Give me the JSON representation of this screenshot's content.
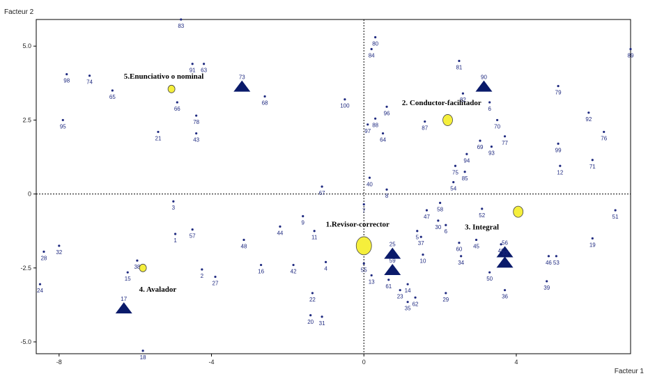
{
  "chart_data": {
    "type": "scatter",
    "xlabel": "Facteur 1",
    "ylabel": "Facteur 2",
    "xlim": [
      -8.6,
      7.0
    ],
    "ylim": [
      -5.4,
      5.9
    ],
    "xticks": [
      -8,
      -4,
      0,
      4
    ],
    "yticks": [
      5.0,
      2.5,
      0,
      -2.5,
      -5.0
    ],
    "xtick_labels": [
      "-8",
      "-4",
      "0",
      "4"
    ],
    "ytick_labels": [
      "5.0",
      "2.5",
      "0",
      "-2.5",
      "-5.0"
    ],
    "reference_lines": {
      "x0": true,
      "y0": true,
      "style": "dotted"
    },
    "colors": {
      "points": "#1f2a80",
      "circles": "#f5ef3c",
      "triangles": "#0a1a6a"
    },
    "points": [
      {
        "label": "83",
        "x": -4.8,
        "y": 5.9
      },
      {
        "label": "80",
        "x": 0.3,
        "y": 5.3
      },
      {
        "label": "89",
        "x": 7.0,
        "y": 4.9
      },
      {
        "label": "84",
        "x": 0.2,
        "y": 4.9
      },
      {
        "label": "91",
        "x": -4.5,
        "y": 4.4
      },
      {
        "label": "63",
        "x": -4.2,
        "y": 4.4
      },
      {
        "label": "81",
        "x": 2.5,
        "y": 4.5
      },
      {
        "label": "98",
        "x": -7.8,
        "y": 4.05
      },
      {
        "label": "74",
        "x": -7.2,
        "y": 4.0
      },
      {
        "label": "65",
        "x": -6.6,
        "y": 3.5
      },
      {
        "label": "68",
        "x": -2.6,
        "y": 3.3
      },
      {
        "label": "79",
        "x": 5.1,
        "y": 3.65
      },
      {
        "label": "100",
        "x": -0.5,
        "y": 3.2
      },
      {
        "label": "82",
        "x": 2.6,
        "y": 3.4
      },
      {
        "label": "66",
        "x": -4.9,
        "y": 3.1
      },
      {
        "label": "96",
        "x": 0.6,
        "y": 2.95
      },
      {
        "label": "6",
        "x": 3.3,
        "y": 3.1
      },
      {
        "label": "92",
        "x": 5.9,
        "y": 2.75
      },
      {
        "label": "78",
        "x": -4.4,
        "y": 2.65
      },
      {
        "label": "88",
        "x": 0.3,
        "y": 2.55
      },
      {
        "label": "95",
        "x": -7.9,
        "y": 2.5
      },
      {
        "label": "87",
        "x": 1.6,
        "y": 2.45
      },
      {
        "label": "70",
        "x": 3.5,
        "y": 2.5
      },
      {
        "label": "97",
        "x": 0.1,
        "y": 2.35
      },
      {
        "label": "21",
        "x": -5.4,
        "y": 2.1
      },
      {
        "label": "43",
        "x": -4.4,
        "y": 2.05
      },
      {
        "label": "64",
        "x": 0.5,
        "y": 2.05
      },
      {
        "label": "76",
        "x": 6.3,
        "y": 2.1
      },
      {
        "label": "77",
        "x": 3.7,
        "y": 1.95
      },
      {
        "label": "69",
        "x": 3.05,
        "y": 1.8
      },
      {
        "label": "99",
        "x": 5.1,
        "y": 1.7
      },
      {
        "label": "93",
        "x": 3.35,
        "y": 1.6
      },
      {
        "label": "94",
        "x": 2.7,
        "y": 1.35
      },
      {
        "label": "71",
        "x": 6.0,
        "y": 1.15
      },
      {
        "label": "12",
        "x": 5.15,
        "y": 0.95
      },
      {
        "label": "75",
        "x": 2.4,
        "y": 0.95
      },
      {
        "label": "85",
        "x": 2.65,
        "y": 0.75
      },
      {
        "label": "40",
        "x": 0.15,
        "y": 0.55
      },
      {
        "label": "54",
        "x": 2.35,
        "y": 0.4
      },
      {
        "label": "67",
        "x": -1.1,
        "y": 0.25
      },
      {
        "label": "8",
        "x": 0.6,
        "y": 0.15
      },
      {
        "label": "7",
        "x": 0.0,
        "y": -0.35
      },
      {
        "label": "3",
        "x": -5.0,
        "y": -0.25
      },
      {
        "label": "58",
        "x": 2.0,
        "y": -0.3
      },
      {
        "label": "52",
        "x": 3.1,
        "y": -0.5
      },
      {
        "label": "47",
        "x": 1.65,
        "y": -0.55
      },
      {
        "label": "51",
        "x": 6.6,
        "y": -0.55
      },
      {
        "label": "9",
        "x": -1.6,
        "y": -0.75
      },
      {
        "label": "30",
        "x": 1.95,
        "y": -0.9
      },
      {
        "label": "6",
        "x": 2.15,
        "y": -1.05
      },
      {
        "label": "44",
        "x": -2.2,
        "y": -1.1
      },
      {
        "label": "11",
        "x": -1.3,
        "y": -1.25
      },
      {
        "label": "57",
        "x": -4.5,
        "y": -1.2
      },
      {
        "label": "5",
        "x": 1.4,
        "y": -1.25
      },
      {
        "label": "1",
        "x": -4.95,
        "y": -1.35
      },
      {
        "label": "37",
        "x": 1.5,
        "y": -1.45
      },
      {
        "label": "48",
        "x": -3.15,
        "y": -1.55
      },
      {
        "label": "19",
        "x": 6.0,
        "y": -1.5
      },
      {
        "label": "45",
        "x": 2.95,
        "y": -1.55
      },
      {
        "label": "60",
        "x": 2.5,
        "y": -1.65
      },
      {
        "label": "49",
        "x": 3.6,
        "y": -1.7
      },
      {
        "label": "32",
        "x": -8.0,
        "y": -1.75
      },
      {
        "label": "28",
        "x": -8.4,
        "y": -1.95
      },
      {
        "label": "10",
        "x": 1.55,
        "y": -2.05
      },
      {
        "label": "34",
        "x": 2.55,
        "y": -2.1
      },
      {
        "label": "46",
        "x": 4.85,
        "y": -2.1
      },
      {
        "label": "53",
        "x": 5.05,
        "y": -2.1
      },
      {
        "label": "38",
        "x": -5.95,
        "y": -2.25
      },
      {
        "label": "4",
        "x": -1.0,
        "y": -2.3
      },
      {
        "label": "55",
        "x": 0.0,
        "y": -2.35
      },
      {
        "label": "16",
        "x": -2.7,
        "y": -2.4
      },
      {
        "label": "42",
        "x": -1.85,
        "y": -2.4
      },
      {
        "label": "2",
        "x": -4.25,
        "y": -2.55
      },
      {
        "label": "15",
        "x": -6.2,
        "y": -2.65
      },
      {
        "label": "50",
        "x": 3.3,
        "y": -2.65
      },
      {
        "label": "27",
        "x": -3.9,
        "y": -2.8
      },
      {
        "label": "13",
        "x": 0.2,
        "y": -2.75
      },
      {
        "label": "61",
        "x": 0.65,
        "y": -2.9
      },
      {
        "label": "39",
        "x": 4.8,
        "y": -2.95
      },
      {
        "label": "24",
        "x": -8.5,
        "y": -3.05
      },
      {
        "label": "14",
        "x": 1.15,
        "y": -3.05
      },
      {
        "label": "23",
        "x": 0.95,
        "y": -3.25
      },
      {
        "label": "36",
        "x": 3.7,
        "y": -3.25
      },
      {
        "label": "22",
        "x": -1.35,
        "y": -3.35
      },
      {
        "label": "29",
        "x": 2.15,
        "y": -3.35
      },
      {
        "label": "62",
        "x": 1.35,
        "y": -3.5
      },
      {
        "label": "35",
        "x": 1.15,
        "y": -3.65
      },
      {
        "label": "20",
        "x": -1.4,
        "y": -4.1
      },
      {
        "label": "31",
        "x": -1.1,
        "y": -4.15
      },
      {
        "label": "18",
        "x": -5.8,
        "y": -5.3
      }
    ],
    "group_centroids": [
      {
        "label": "5.Enunciativo o nominal",
        "x": -5.05,
        "y": 3.55,
        "size": "small"
      },
      {
        "label": "2. Conductor-facilitador",
        "x": 2.2,
        "y": 2.5,
        "size": "medium"
      },
      {
        "label": "1.Revisor-corrector",
        "x": 0.0,
        "y": -1.75,
        "size": "large"
      },
      {
        "label": "3. Integral",
        "x": 4.05,
        "y": -0.6,
        "size": "medium"
      },
      {
        "label": "4. Avalador",
        "x": -5.8,
        "y": -2.5,
        "size": "small"
      }
    ],
    "group_label_positions": [
      {
        "text": "5.Enunciativo o nominal",
        "x": -6.3,
        "y": 3.9
      },
      {
        "text": "2. Conductor-facilitador",
        "x": 1.0,
        "y": 3.0
      },
      {
        "text": "1.Revisor-corrector",
        "x": -1.0,
        "y": -1.1
      },
      {
        "text": "3. Integral",
        "x": 2.65,
        "y": -1.2
      },
      {
        "text": "4. Avalador",
        "x": -5.9,
        "y": -3.3
      }
    ],
    "triangles": [
      {
        "label": "73",
        "x": -3.2,
        "y": 3.65
      },
      {
        "label": "90",
        "x": 3.15,
        "y": 3.65
      },
      {
        "label": "25",
        "x": 0.75,
        "y": -2.0
      },
      {
        "label": "59",
        "x": 0.75,
        "y": -2.55
      },
      {
        "label": "56",
        "x": 3.7,
        "y": -1.95
      },
      {
        "label": "33",
        "x": 3.7,
        "y": -2.3
      },
      {
        "label": "17",
        "x": -6.3,
        "y": -3.85
      }
    ]
  }
}
